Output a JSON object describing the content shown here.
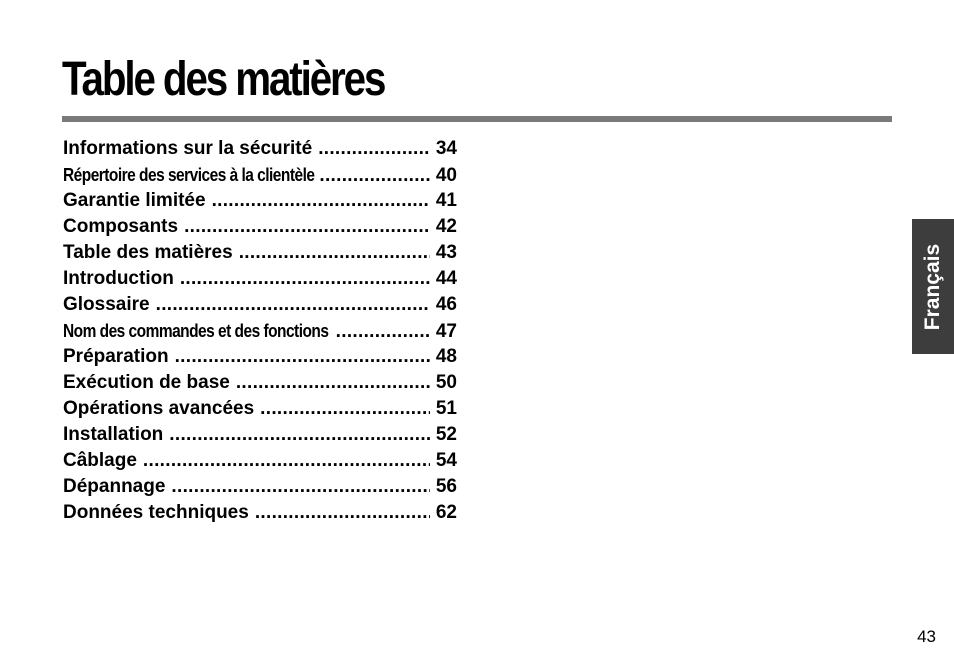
{
  "page": {
    "title": "Table des matières",
    "language_tab": "Français",
    "page_number": "43"
  },
  "toc": [
    {
      "label": "Informations sur la sécurité",
      "page": "34"
    },
    {
      "label": "Répertoire des services à la clientèle",
      "page": "40"
    },
    {
      "label": "Garantie limitée",
      "page": "41"
    },
    {
      "label": "Composants",
      "page": "42"
    },
    {
      "label": "Table des matières",
      "page": "43"
    },
    {
      "label": "Introduction",
      "page": "44"
    },
    {
      "label": "Glossaire",
      "page": "46"
    },
    {
      "label": "Nom des commandes et des fonctions",
      "page": "47"
    },
    {
      "label": "Préparation",
      "page": "48"
    },
    {
      "label": "Exécution de base",
      "page": "50"
    },
    {
      "label": "Opérations avancées",
      "page": "51"
    },
    {
      "label": "Installation",
      "page": "52"
    },
    {
      "label": "Câblage",
      "page": "54"
    },
    {
      "label": "Dépannage",
      "page": "56"
    },
    {
      "label": "Données techniques",
      "page": "62"
    }
  ]
}
